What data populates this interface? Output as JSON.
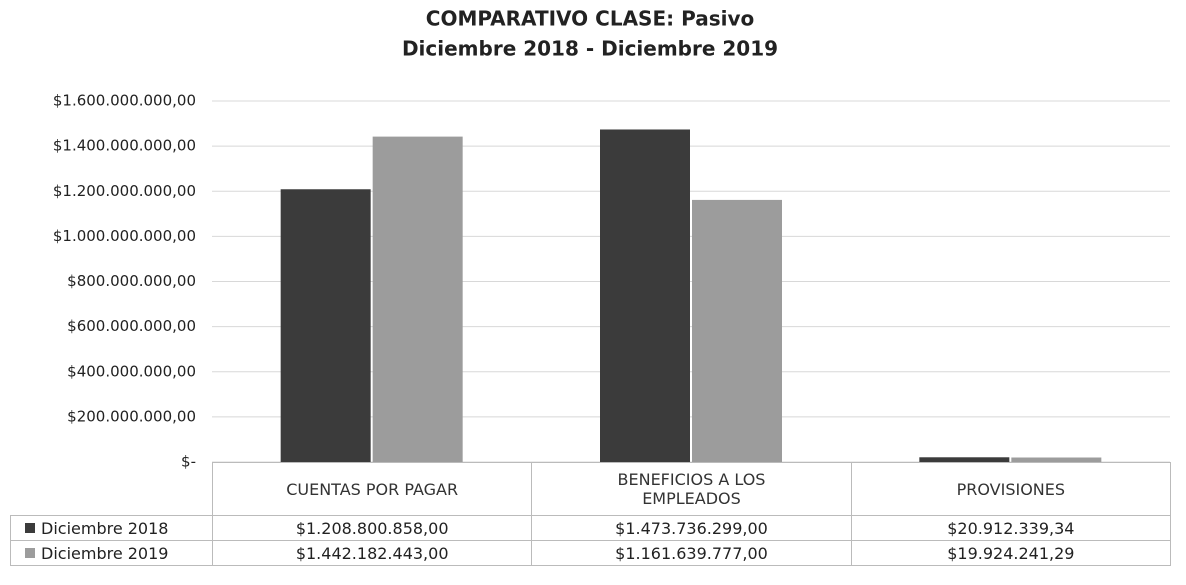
{
  "chart_data": {
    "type": "bar",
    "title": "COMPARATIVO CLASE: Pasivo",
    "subtitle": "Diciembre 2018 - Diciembre 2019",
    "categories": [
      "CUENTAS POR PAGAR",
      "BENEFICIOS A LOS EMPLEADOS",
      "PROVISIONES"
    ],
    "series": [
      {
        "name": "Diciembre 2018",
        "color": "#3b3b3b",
        "values": [
          1208800858,
          1473736299,
          20912339.34
        ],
        "value_labels": [
          "$1.208.800.858,00",
          "$1.473.736.299,00",
          "$20.912.339,34"
        ]
      },
      {
        "name": "Diciembre 2019",
        "color": "#9c9c9c",
        "values": [
          1442182443,
          1161639777,
          19924241.29
        ],
        "value_labels": [
          "$1.442.182.443,00",
          "$1.161.639.777,00",
          "$19.924.241,29"
        ]
      }
    ],
    "ylim": [
      0,
      1600000000
    ],
    "yticks": [
      {
        "value": 0,
        "label": "$-"
      },
      {
        "value": 200000000,
        "label": "$200.000.000,00"
      },
      {
        "value": 400000000,
        "label": "$400.000.000,00"
      },
      {
        "value": 600000000,
        "label": "$600.000.000,00"
      },
      {
        "value": 800000000,
        "label": "$800.000.000,00"
      },
      {
        "value": 1000000000,
        "label": "$1.000.000.000,00"
      },
      {
        "value": 1200000000,
        "label": "$1.200.000.000,00"
      },
      {
        "value": 1400000000,
        "label": "$1.400.000.000,00"
      },
      {
        "value": 1600000000,
        "label": "$1.600.000.000,00"
      }
    ],
    "grid": true
  }
}
